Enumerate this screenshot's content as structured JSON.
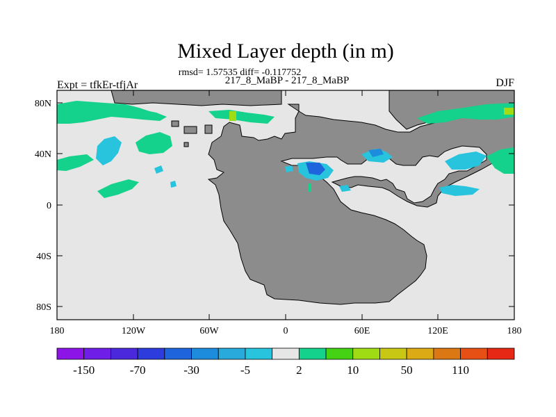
{
  "header": {
    "title": "Mixed Layer depth (in m)",
    "stats": "rmsd= 1.57535 diff= -0.117752",
    "comparison": "217_8_MaBP - 217_8_MaBP",
    "experiment": "Expt = tfkEr-tfjAr",
    "season": "DJF"
  },
  "map": {
    "lat_labels": [
      "80N",
      "40N",
      "0",
      "40S",
      "80S"
    ],
    "lon_labels": [
      "180",
      "120W",
      "60W",
      "0",
      "60E",
      "120E",
      "180"
    ],
    "land_color": "#8c8c8c",
    "ocean_background_color": "#e6e6e6"
  },
  "colorbar": {
    "colors": [
      "#8c14e6",
      "#6e1ee6",
      "#4b28dc",
      "#2d3cdc",
      "#1e64dc",
      "#1e8cdc",
      "#28aadc",
      "#28c3dc",
      "#e6e6e6",
      "#14d28c",
      "#46d214",
      "#a0dc14",
      "#c8c814",
      "#dcaa14",
      "#dc7814",
      "#e65014",
      "#e62814"
    ],
    "labels": [
      "-150",
      "-70",
      "-30",
      "-5",
      "2",
      "10",
      "50",
      "110"
    ]
  }
}
